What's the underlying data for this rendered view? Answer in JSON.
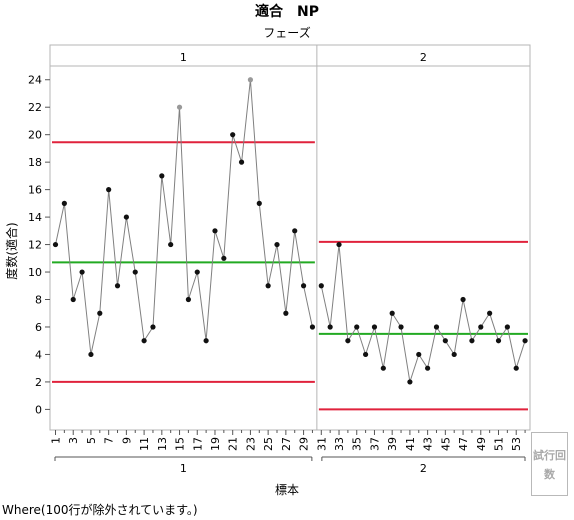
{
  "title": "適合　NP",
  "phase_label": "フェーズ",
  "y_label": "度数(適合)",
  "x_label": "標本",
  "trial_button": "試行回数",
  "where_note": "Where(100行が除外されています。)",
  "colors": {
    "center": "#22aa22",
    "limit": "#e0223c",
    "line": "#808080",
    "point": "#111111",
    "excluded": "#999999"
  },
  "chart_data": {
    "type": "line",
    "ylim": [
      -1.5,
      25
    ],
    "yticks": [
      0,
      2,
      4,
      6,
      8,
      10,
      12,
      14,
      16,
      18,
      20,
      22,
      24
    ],
    "xticks": [
      1,
      3,
      5,
      7,
      9,
      11,
      13,
      15,
      17,
      19,
      21,
      23,
      25,
      27,
      29,
      31,
      33,
      35,
      37,
      39,
      41,
      43,
      45,
      47,
      49,
      51,
      53
    ],
    "phases": [
      {
        "name": "1",
        "start": 1,
        "end": 30,
        "center": 10.7,
        "ucl": 19.45,
        "lcl": 2.0,
        "values": [
          12,
          15,
          8,
          10,
          4,
          7,
          16,
          9,
          14,
          10,
          5,
          6,
          17,
          12,
          22,
          8,
          10,
          5,
          13,
          11,
          20,
          18,
          24,
          15,
          9,
          12,
          7,
          13,
          9,
          6
        ],
        "excluded_samples": [
          15,
          23
        ]
      },
      {
        "name": "2",
        "start": 31,
        "end": 54,
        "center": 5.5,
        "ucl": 12.2,
        "lcl": 0,
        "values": [
          9,
          6,
          12,
          5,
          6,
          4,
          6,
          3,
          7,
          6,
          2,
          4,
          3,
          6,
          5,
          4,
          8,
          5,
          6,
          7,
          5,
          6,
          3,
          5
        ],
        "excluded_samples": []
      }
    ]
  }
}
